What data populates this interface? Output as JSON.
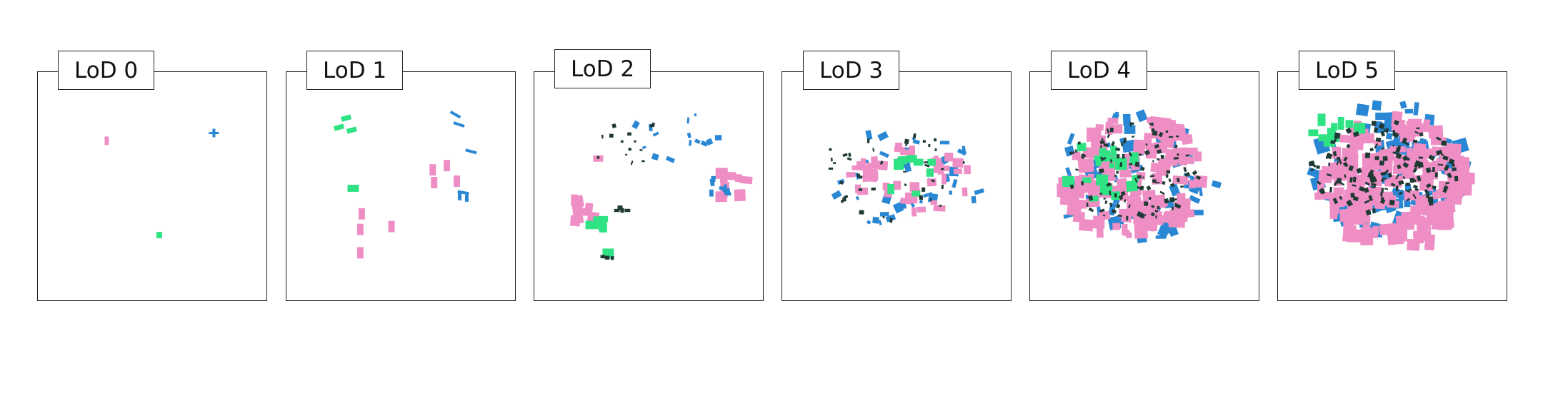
{
  "panels": [
    {
      "label": "LoD 0"
    },
    {
      "label": "LoD 1"
    },
    {
      "label": "LoD 2"
    },
    {
      "label": "LoD 3"
    },
    {
      "label": "LoD 4"
    },
    {
      "label": "LoD 5"
    }
  ],
  "colors": {
    "pink": "#ee8ec4",
    "blue": "#2a87d4",
    "green": "#2fe384",
    "dark": "#1f3a34",
    "frame": "#222222"
  }
}
